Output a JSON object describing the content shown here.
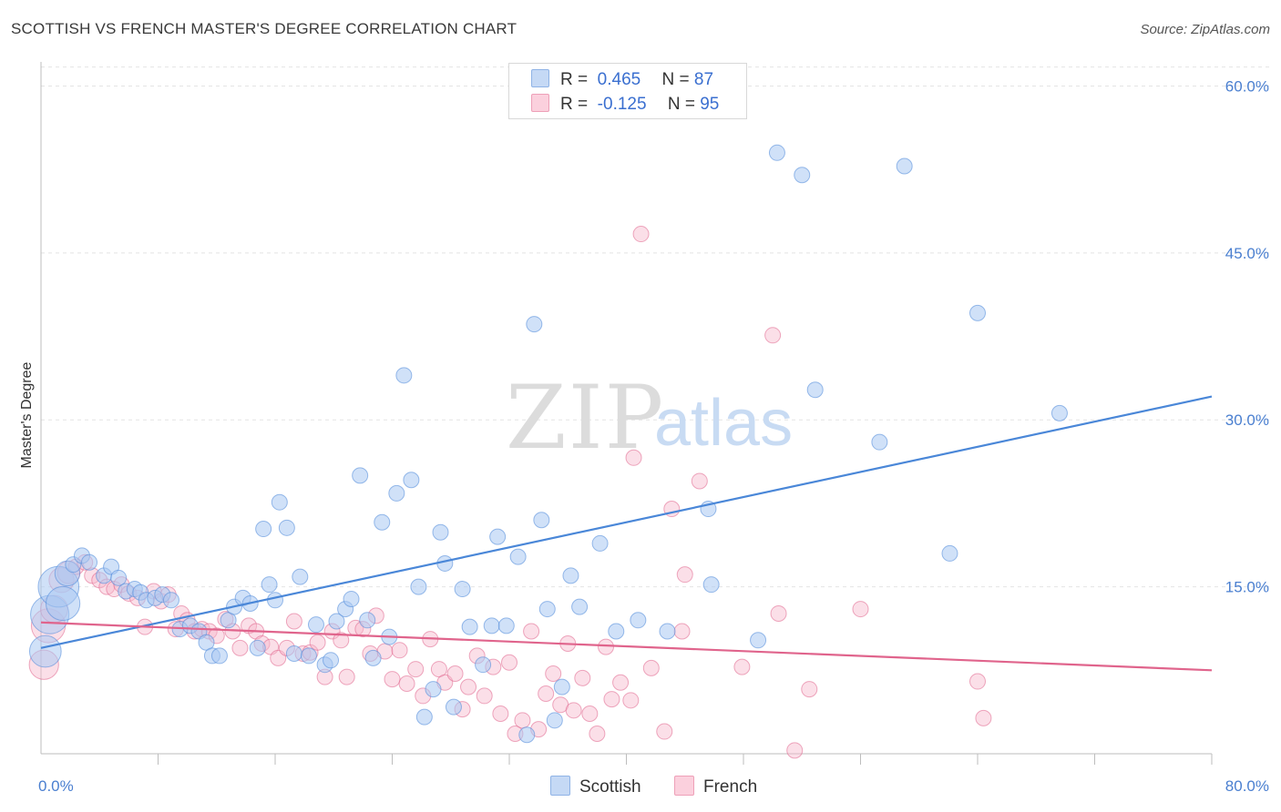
{
  "header": {
    "title": "SCOTTISH VS FRENCH MASTER'S DEGREE CORRELATION CHART",
    "source": "Source: ZipAtlas.com"
  },
  "watermark": {
    "zip": "ZIP",
    "atlas": "atlas"
  },
  "legend_top": [
    {
      "r_label": "R =",
      "r_value": "0.465",
      "n_label": "N =",
      "n_value": "87",
      "color": "#a9c8f2"
    },
    {
      "r_label": "R =",
      "r_value": "-0.125",
      "n_label": "N =",
      "n_value": "95",
      "color": "#f7b8cb"
    }
  ],
  "legend_bottom": [
    {
      "label": "Scottish",
      "color": "#a9c8f2"
    },
    {
      "label": "French",
      "color": "#f7b8cb"
    }
  ],
  "chart_data": {
    "type": "scatter",
    "title": "SCOTTISH VS FRENCH MASTER'S DEGREE CORRELATION CHART",
    "xlabel": "",
    "ylabel": "Master's Degree",
    "xlim": [
      0,
      80
    ],
    "ylim": [
      0,
      62
    ],
    "x_tick_labels": [
      "0.0%",
      "80.0%"
    ],
    "y_tick_labels": [
      "15.0%",
      "30.0%",
      "45.0%",
      "60.0%"
    ],
    "y_ticks": [
      15,
      30,
      45,
      60
    ],
    "grid": true,
    "legend_position": "top-center",
    "series": [
      {
        "name": "Scottish",
        "color": "#4a87d8",
        "fill": "#a9c8f2",
        "trend": {
          "x": [
            0,
            80
          ],
          "y": [
            9.5,
            32.1
          ]
        },
        "points": [
          [
            0.3,
            9.2
          ],
          [
            0.6,
            12.5
          ],
          [
            1.2,
            15.0
          ],
          [
            1.5,
            13.5
          ],
          [
            1.8,
            16.2
          ],
          [
            2.2,
            17.0
          ],
          [
            2.8,
            17.8
          ],
          [
            3.3,
            17.2
          ],
          [
            4.3,
            16.0
          ],
          [
            4.8,
            16.8
          ],
          [
            5.3,
            15.8
          ],
          [
            5.8,
            14.6
          ],
          [
            6.4,
            14.8
          ],
          [
            6.8,
            14.5
          ],
          [
            7.2,
            13.8
          ],
          [
            7.8,
            14.0
          ],
          [
            8.3,
            14.3
          ],
          [
            8.9,
            13.8
          ],
          [
            9.5,
            11.2
          ],
          [
            10.2,
            11.5
          ],
          [
            10.8,
            11.0
          ],
          [
            11.3,
            10.0
          ],
          [
            11.7,
            8.8
          ],
          [
            12.2,
            8.8
          ],
          [
            12.8,
            12.0
          ],
          [
            13.2,
            13.2
          ],
          [
            13.8,
            14.0
          ],
          [
            14.3,
            13.5
          ],
          [
            14.8,
            9.5
          ],
          [
            15.2,
            20.2
          ],
          [
            15.6,
            15.2
          ],
          [
            16.0,
            13.8
          ],
          [
            16.3,
            22.6
          ],
          [
            16.8,
            20.3
          ],
          [
            17.3,
            9.0
          ],
          [
            17.7,
            15.9
          ],
          [
            18.3,
            8.8
          ],
          [
            18.8,
            11.6
          ],
          [
            19.4,
            8.0
          ],
          [
            19.8,
            8.4
          ],
          [
            20.2,
            11.9
          ],
          [
            20.8,
            13.0
          ],
          [
            21.2,
            13.9
          ],
          [
            21.8,
            25.0
          ],
          [
            22.3,
            12.0
          ],
          [
            22.7,
            8.6
          ],
          [
            23.3,
            20.8
          ],
          [
            23.8,
            10.5
          ],
          [
            24.3,
            23.4
          ],
          [
            24.8,
            34.0
          ],
          [
            25.3,
            24.6
          ],
          [
            25.8,
            15.0
          ],
          [
            26.2,
            3.3
          ],
          [
            26.8,
            5.8
          ],
          [
            27.3,
            19.9
          ],
          [
            27.6,
            17.1
          ],
          [
            28.2,
            4.2
          ],
          [
            28.8,
            14.8
          ],
          [
            29.3,
            11.4
          ],
          [
            30.2,
            8.0
          ],
          [
            30.8,
            11.5
          ],
          [
            31.2,
            19.5
          ],
          [
            31.8,
            11.5
          ],
          [
            32.6,
            17.7
          ],
          [
            33.2,
            1.7
          ],
          [
            33.7,
            38.6
          ],
          [
            34.2,
            21.0
          ],
          [
            34.6,
            13.0
          ],
          [
            35.1,
            3.0
          ],
          [
            35.6,
            6.0
          ],
          [
            36.2,
            16.0
          ],
          [
            36.8,
            13.2
          ],
          [
            38.2,
            18.9
          ],
          [
            39.3,
            11.0
          ],
          [
            40.8,
            12.0
          ],
          [
            42.8,
            11.0
          ],
          [
            45.6,
            22.0
          ],
          [
            45.8,
            15.2
          ],
          [
            49.0,
            10.2
          ],
          [
            50.3,
            54.0
          ],
          [
            52.0,
            52.0
          ],
          [
            52.9,
            32.7
          ],
          [
            57.3,
            28.0
          ],
          [
            59.0,
            52.8
          ],
          [
            62.1,
            18.0
          ],
          [
            64.0,
            39.6
          ],
          [
            69.6,
            30.6
          ]
        ],
        "sizes": {
          "0": 28,
          "1": 34,
          "2": 36,
          "3": 30,
          "4": 22
        }
      },
      {
        "name": "French",
        "color": "#e0648c",
        "fill": "#f7b8cb",
        "trend": {
          "x": [
            0,
            80
          ],
          "y": [
            11.8,
            7.5
          ]
        },
        "points": [
          [
            0.2,
            8.0
          ],
          [
            0.5,
            11.5
          ],
          [
            0.9,
            13.0
          ],
          [
            1.4,
            15.6
          ],
          [
            1.9,
            16.3
          ],
          [
            2.4,
            16.8
          ],
          [
            3.0,
            17.2
          ],
          [
            3.5,
            16.0
          ],
          [
            4.0,
            15.6
          ],
          [
            4.5,
            15.0
          ],
          [
            5.0,
            14.8
          ],
          [
            5.5,
            15.2
          ],
          [
            6.0,
            14.4
          ],
          [
            6.6,
            14.0
          ],
          [
            7.1,
            11.4
          ],
          [
            7.7,
            14.6
          ],
          [
            8.2,
            13.7
          ],
          [
            8.7,
            14.3
          ],
          [
            9.2,
            11.2
          ],
          [
            9.6,
            12.6
          ],
          [
            10.0,
            12.0
          ],
          [
            10.5,
            11.0
          ],
          [
            11.0,
            11.2
          ],
          [
            11.5,
            11.0
          ],
          [
            12.0,
            10.6
          ],
          [
            12.6,
            12.1
          ],
          [
            13.1,
            11.0
          ],
          [
            13.6,
            9.5
          ],
          [
            14.2,
            11.5
          ],
          [
            14.7,
            11.0
          ],
          [
            15.1,
            9.9
          ],
          [
            15.7,
            9.6
          ],
          [
            16.2,
            8.6
          ],
          [
            16.8,
            9.5
          ],
          [
            17.3,
            11.9
          ],
          [
            17.9,
            9.0
          ],
          [
            18.4,
            9.1
          ],
          [
            18.9,
            10.0
          ],
          [
            19.4,
            6.9
          ],
          [
            19.9,
            11.0
          ],
          [
            20.5,
            10.2
          ],
          [
            20.9,
            6.9
          ],
          [
            21.5,
            11.3
          ],
          [
            22.0,
            11.2
          ],
          [
            22.5,
            9.0
          ],
          [
            22.9,
            12.4
          ],
          [
            23.5,
            9.2
          ],
          [
            24.0,
            6.7
          ],
          [
            24.5,
            9.3
          ],
          [
            25.0,
            6.3
          ],
          [
            25.6,
            7.6
          ],
          [
            26.1,
            5.2
          ],
          [
            26.6,
            10.3
          ],
          [
            27.2,
            7.6
          ],
          [
            27.6,
            6.4
          ],
          [
            28.3,
            7.2
          ],
          [
            28.8,
            4.0
          ],
          [
            29.2,
            6.0
          ],
          [
            29.8,
            8.8
          ],
          [
            30.3,
            5.2
          ],
          [
            30.9,
            7.8
          ],
          [
            31.4,
            3.6
          ],
          [
            32.0,
            8.2
          ],
          [
            32.4,
            1.8
          ],
          [
            32.9,
            3.0
          ],
          [
            33.5,
            11.0
          ],
          [
            34.0,
            2.2
          ],
          [
            34.5,
            5.4
          ],
          [
            35.0,
            7.2
          ],
          [
            35.5,
            4.4
          ],
          [
            36.0,
            9.9
          ],
          [
            36.4,
            3.9
          ],
          [
            37.0,
            6.8
          ],
          [
            37.5,
            3.6
          ],
          [
            38.0,
            1.8
          ],
          [
            38.6,
            9.6
          ],
          [
            39.0,
            4.9
          ],
          [
            39.6,
            6.4
          ],
          [
            40.3,
            4.8
          ],
          [
            41.0,
            46.7
          ],
          [
            41.7,
            7.7
          ],
          [
            42.6,
            2.0
          ],
          [
            43.1,
            22.0
          ],
          [
            43.8,
            11.0
          ],
          [
            44.0,
            16.1
          ],
          [
            45.0,
            24.5
          ],
          [
            47.9,
            7.8
          ],
          [
            50.0,
            37.6
          ],
          [
            50.4,
            12.6
          ],
          [
            51.5,
            0.3
          ],
          [
            52.5,
            5.8
          ],
          [
            56.0,
            13.0
          ],
          [
            64.0,
            6.5
          ],
          [
            64.4,
            3.2
          ],
          [
            40.5,
            26.6
          ]
        ],
        "sizes": {
          "0": 26,
          "1": 30,
          "2": 24,
          "3": 22,
          "4": 20
        }
      }
    ]
  }
}
